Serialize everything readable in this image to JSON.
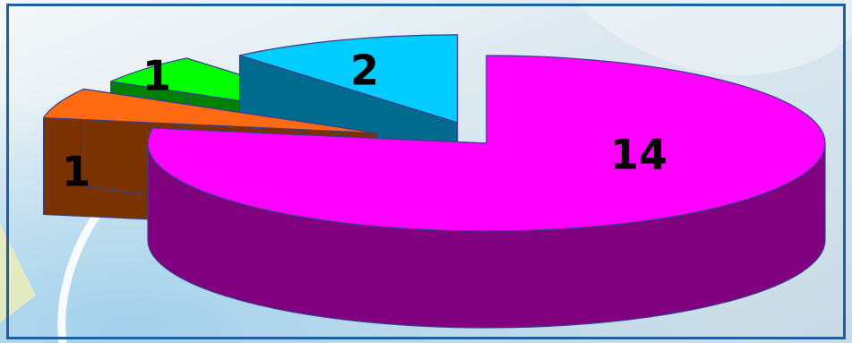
{
  "chart_data": {
    "type": "pie",
    "style": "3d-exploded",
    "title": "",
    "categories": [
      "",
      "",
      "",
      ""
    ],
    "values": [
      14,
      1,
      1,
      2
    ],
    "data_labels": [
      "14",
      "1",
      "1",
      "2"
    ],
    "colors": {
      "top": [
        "#FF00FF",
        "#FF6A13",
        "#00FF00",
        "#00CCFF"
      ],
      "side": [
        "#800080",
        "#7A3300",
        "#008000",
        "#006B8F"
      ]
    },
    "legend": "none"
  }
}
